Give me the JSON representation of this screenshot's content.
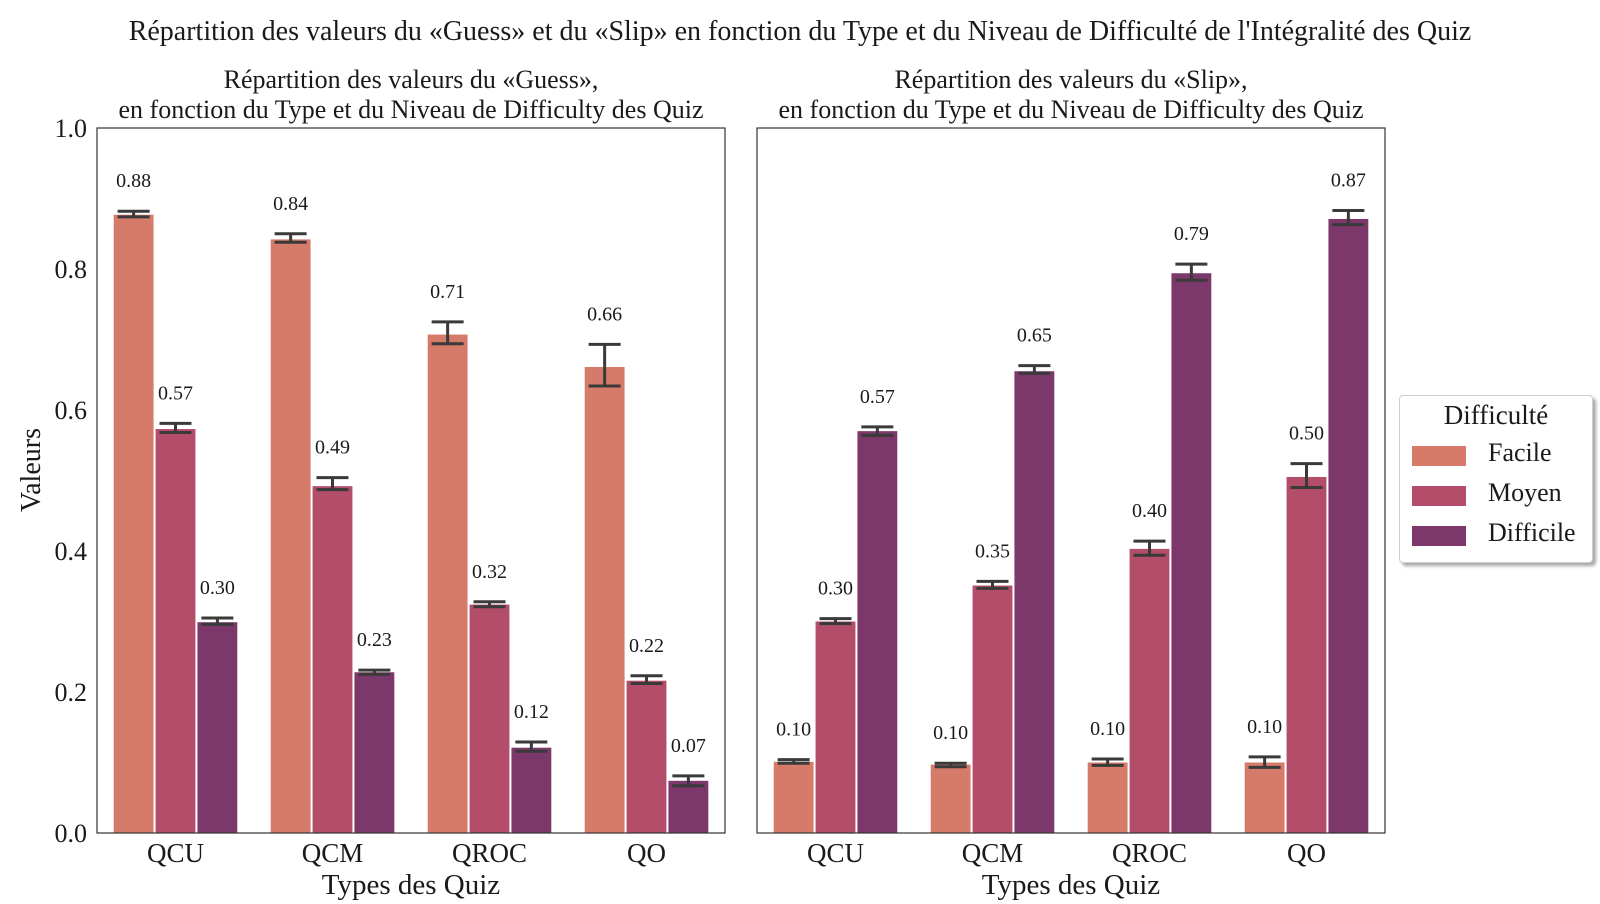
{
  "figure_title": "Répartition des valeurs du «Guess» et du «Slip» en fonction du Type et du Niveau de Difficulté de l'Intégralité des Quiz",
  "ylabel": "Valeurs",
  "colors": {
    "Facile": "#d67b6a",
    "Moyen": "#b44d6a",
    "Difficile": "#7c386b"
  },
  "legend": {
    "title": "Difficulté",
    "items": [
      {
        "label": "Facile",
        "color": "#d67b6a"
      },
      {
        "label": "Moyen",
        "color": "#b44d6a"
      },
      {
        "label": "Difficile",
        "color": "#7c386b"
      }
    ]
  },
  "chart_data": [
    {
      "type": "bar",
      "title": "Répartition des valeurs du «Guess»,\nen fonction du Type et du Niveau de Difficulty des Quiz",
      "xlabel": "Types des Quiz",
      "ylabel": "Valeurs",
      "categories": [
        "QCU",
        "QCM",
        "QROC",
        "QO"
      ],
      "ylim": [
        0,
        1.0
      ],
      "yticks": [
        "0.0",
        "0.2",
        "0.4",
        "0.6",
        "0.8",
        "1.0"
      ],
      "series": [
        {
          "name": "Facile",
          "values": [
            0.877,
            0.842,
            0.707,
            0.661
          ],
          "err_low": [
            0.874,
            0.838,
            0.694,
            0.634
          ],
          "err_high": [
            0.882,
            0.85,
            0.725,
            0.693
          ],
          "labels": [
            "0.88",
            "0.84",
            "0.71",
            "0.66"
          ]
        },
        {
          "name": "Moyen",
          "values": [
            0.573,
            0.492,
            0.324,
            0.216
          ],
          "err_low": [
            0.568,
            0.487,
            0.321,
            0.212
          ],
          "err_high": [
            0.581,
            0.504,
            0.328,
            0.223
          ],
          "labels": [
            "0.57",
            "0.49",
            "0.32",
            "0.22"
          ]
        },
        {
          "name": "Difficile",
          "values": [
            0.299,
            0.228,
            0.121,
            0.074
          ],
          "err_low": [
            0.296,
            0.225,
            0.116,
            0.067
          ],
          "err_high": [
            0.305,
            0.231,
            0.129,
            0.081
          ],
          "labels": [
            "0.30",
            "0.23",
            "0.12",
            "0.07"
          ]
        }
      ],
      "legend": "none",
      "grid": false
    },
    {
      "type": "bar",
      "title": "Répartition des valeurs du «Slip»,\nen fonction du Type et du Niveau de Difficulty des Quiz",
      "xlabel": "Types des Quiz",
      "ylabel": "",
      "categories": [
        "QCU",
        "QCM",
        "QROC",
        "QO"
      ],
      "ylim": [
        0,
        1.0
      ],
      "yticks": [],
      "series": [
        {
          "name": "Facile",
          "values": [
            0.101,
            0.097,
            0.1,
            0.1
          ],
          "err_low": [
            0.099,
            0.094,
            0.096,
            0.093
          ],
          "err_high": [
            0.104,
            0.099,
            0.105,
            0.108
          ],
          "labels": [
            "0.10",
            "0.10",
            "0.10",
            "0.10"
          ]
        },
        {
          "name": "Moyen",
          "values": [
            0.3,
            0.351,
            0.403,
            0.505
          ],
          "err_low": [
            0.297,
            0.347,
            0.394,
            0.49
          ],
          "err_high": [
            0.304,
            0.357,
            0.414,
            0.524
          ],
          "labels": [
            "0.30",
            "0.35",
            "0.40",
            "0.50"
          ]
        },
        {
          "name": "Difficile",
          "values": [
            0.57,
            0.655,
            0.794,
            0.871
          ],
          "err_low": [
            0.564,
            0.652,
            0.784,
            0.863
          ],
          "err_high": [
            0.576,
            0.663,
            0.807,
            0.883
          ],
          "labels": [
            "0.57",
            "0.65",
            "0.79",
            "0.87"
          ]
        }
      ],
      "legend": "right",
      "grid": false
    }
  ]
}
